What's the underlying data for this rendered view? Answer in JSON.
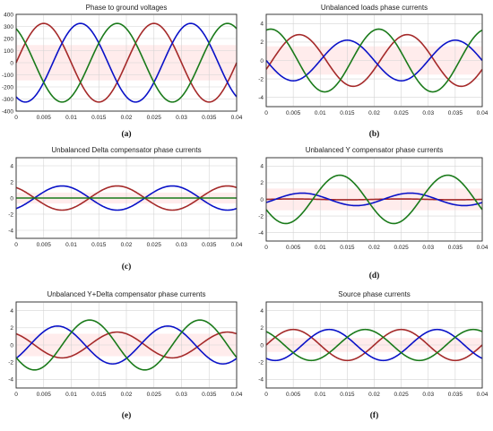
{
  "colors": {
    "phase_a": "#a52a2a",
    "phase_b": "#0a12c8",
    "phase_c": "#1a7a1a",
    "band": "#ffd4d4"
  },
  "panels": [
    {
      "id": "a",
      "caption": "(a)",
      "title": "Phase to ground voltages",
      "xlim": [
        0,
        0.04
      ],
      "ylim": [
        -400,
        400
      ],
      "xticks": [
        0,
        0.005,
        0.01,
        0.015,
        0.02,
        0.025,
        0.03,
        0.035,
        0.04
      ],
      "xtick_labels": [
        "0",
        "0.005",
        "0.01",
        "0.015",
        "0.02",
        "0.025",
        "0.03",
        "0.035",
        "0.04"
      ],
      "yticks": [
        -400,
        -300,
        -200,
        -100,
        0,
        100,
        200,
        300,
        400
      ],
      "ytick_labels": [
        "-400",
        "-300",
        "-200",
        "-100",
        "0",
        "100",
        "200",
        "300",
        "400"
      ],
      "chart_data": {
        "type": "line",
        "grid": true,
        "band": true,
        "series": [
          {
            "amplitude": 325,
            "phase_deg": 0,
            "color": "#a52a2a"
          },
          {
            "amplitude": 325,
            "phase_deg": -120,
            "color": "#0a12c8"
          },
          {
            "amplitude": 325,
            "phase_deg": 120,
            "color": "#1a7a1a"
          }
        ]
      }
    },
    {
      "id": "b",
      "caption": "(b)",
      "title": "Unbalanced loads phase currents",
      "xlim": [
        0,
        0.04
      ],
      "ylim": [
        -5,
        5
      ],
      "xticks": [
        0,
        0.005,
        0.01,
        0.015,
        0.02,
        0.025,
        0.03,
        0.035,
        0.04
      ],
      "xtick_labels": [
        "0",
        "0.005",
        "0.01",
        "0.015",
        "0.02",
        "0.025",
        "0.03",
        "0.035",
        "0.04"
      ],
      "yticks": [
        -4,
        -2,
        0,
        2,
        4
      ],
      "ytick_labels": [
        "-4",
        "-2",
        "0",
        "2",
        "4"
      ],
      "chart_data": {
        "type": "line",
        "grid": true,
        "band": true,
        "series": [
          {
            "amplitude": 2.8,
            "phase_deg": -20,
            "color": "#a52a2a"
          },
          {
            "amplitude": 2.2,
            "phase_deg": 180,
            "color": "#0a12c8"
          },
          {
            "amplitude": 3.4,
            "phase_deg": 75,
            "color": "#1a7a1a"
          }
        ]
      }
    },
    {
      "id": "c",
      "caption": "(c)",
      "title": "Unbalanced  Delta compensator phase currents",
      "xlim": [
        0,
        0.04
      ],
      "ylim": [
        -5,
        5
      ],
      "xticks": [
        0,
        0.005,
        0.01,
        0.015,
        0.02,
        0.025,
        0.03,
        0.035,
        0.04
      ],
      "xtick_labels": [
        "0",
        "0.005",
        "0.01",
        "0.015",
        "0.02",
        "0.025",
        "0.03",
        "0.035",
        "0.04"
      ],
      "yticks": [
        -4,
        -2,
        0,
        2,
        4
      ],
      "ytick_labels": [
        "-4",
        "-2",
        "0",
        "2",
        "4"
      ],
      "chart_data": {
        "type": "line",
        "grid": true,
        "band": true,
        "series": [
          {
            "amplitude": 1.5,
            "phase_deg": 120,
            "color": "#a52a2a"
          },
          {
            "amplitude": 1.5,
            "phase_deg": -60,
            "color": "#0a12c8"
          },
          {
            "amplitude": 0,
            "phase_deg": 0,
            "color": "#1a7a1a"
          }
        ]
      }
    },
    {
      "id": "d",
      "caption": "(d)",
      "title": "Unbalanced Y compensator phase currents",
      "xlim": [
        0,
        0.04
      ],
      "ylim": [
        -5,
        5
      ],
      "xticks": [
        0,
        0.005,
        0.01,
        0.015,
        0.02,
        0.025,
        0.03,
        0.035,
        0.04
      ],
      "xtick_labels": [
        "0",
        "0.005",
        "0.01",
        "0.015",
        "0.02",
        "0.025",
        "0.03",
        "0.035",
        "0.04"
      ],
      "yticks": [
        -4,
        -2,
        0,
        2,
        4
      ],
      "ytick_labels": [
        "-4",
        "-2",
        "0",
        "2",
        "4"
      ],
      "chart_data": {
        "type": "line",
        "grid": true,
        "band": true,
        "series": [
          {
            "amplitude": 0.05,
            "phase_deg": 0,
            "color": "#a52a2a"
          },
          {
            "amplitude": 0.75,
            "phase_deg": -30,
            "color": "#0a12c8"
          },
          {
            "amplitude": 2.9,
            "phase_deg": 205,
            "color": "#1a7a1a"
          }
        ]
      }
    },
    {
      "id": "e",
      "caption": "(e)",
      "title": "Unbalanced Y+Delta compensator phase currents",
      "xlim": [
        0,
        0.04
      ],
      "ylim": [
        -5,
        5
      ],
      "xticks": [
        0,
        0.005,
        0.01,
        0.015,
        0.02,
        0.025,
        0.03,
        0.035,
        0.04
      ],
      "xtick_labels": [
        "0",
        "0.005",
        "0.01",
        "0.015",
        "0.02",
        "0.025",
        "0.03",
        "0.035",
        "0.04"
      ],
      "yticks": [
        -4,
        -2,
        0,
        2,
        4
      ],
      "ytick_labels": [
        "-4",
        "-2",
        "0",
        "2",
        "4"
      ],
      "chart_data": {
        "type": "line",
        "grid": true,
        "band": true,
        "series": [
          {
            "amplitude": 1.5,
            "phase_deg": 120,
            "color": "#a52a2a"
          },
          {
            "amplitude": 2.2,
            "phase_deg": -45,
            "color": "#0a12c8"
          },
          {
            "amplitude": 2.9,
            "phase_deg": 210,
            "color": "#1a7a1a"
          }
        ]
      }
    },
    {
      "id": "f",
      "caption": "(f)",
      "title": "Source phase currents",
      "xlim": [
        0,
        0.04
      ],
      "ylim": [
        -5,
        5
      ],
      "xticks": [
        0,
        0.005,
        0.01,
        0.015,
        0.02,
        0.025,
        0.03,
        0.035,
        0.04
      ],
      "xtick_labels": [
        "0",
        "0.005",
        "0.01",
        "0.015",
        "0.02",
        "0.025",
        "0.03",
        "0.035",
        "0.04"
      ],
      "yticks": [
        -4,
        -2,
        0,
        2,
        4
      ],
      "ytick_labels": [
        "-4",
        "-2",
        "0",
        "2",
        "4"
      ],
      "chart_data": {
        "type": "line",
        "grid": true,
        "band": true,
        "series": [
          {
            "amplitude": 1.8,
            "phase_deg": 0,
            "color": "#a52a2a"
          },
          {
            "amplitude": 1.8,
            "phase_deg": -120,
            "color": "#0a12c8"
          },
          {
            "amplitude": 1.8,
            "phase_deg": 120,
            "color": "#1a7a1a"
          }
        ]
      }
    }
  ]
}
